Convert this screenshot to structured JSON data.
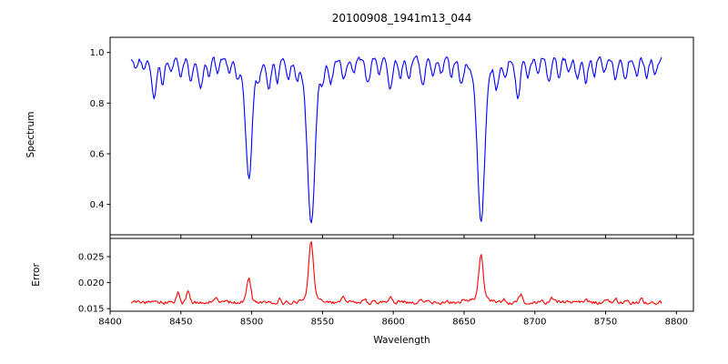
{
  "title": "20100908_1941m13_044",
  "chart_data": {
    "type": "line",
    "title": "20100908_1941m13_044",
    "xlabel": "Wavelength",
    "xlim": [
      8400,
      8812
    ],
    "xticks": [
      8400,
      8450,
      8500,
      8550,
      8600,
      8650,
      8700,
      8750,
      8800
    ],
    "x_data_range": [
      8415,
      8790
    ],
    "sample_step": 0.8,
    "noise_seed": 20100908,
    "grid": false,
    "legend": "none",
    "panels": [
      {
        "name": "spectrum",
        "ylabel": "Spectrum",
        "color": "#0000ff",
        "ylim": [
          0.28,
          1.06
        ],
        "yticks": [
          0.4,
          0.6,
          0.8,
          1.0
        ],
        "ytick_labels": [
          "0.4",
          "0.6",
          "0.8",
          "1.0"
        ],
        "continuum": 0.975,
        "noise_amp": 0.009,
        "main_absorption_lines_wavelengths": [
          8498,
          8542,
          8662
        ],
        "main_absorption_lines_min_flux": [
          0.5,
          0.33,
          0.34
        ],
        "absorption_lines": [
          [
            8418,
            0.04,
            1.2
          ],
          [
            8424,
            0.05,
            1.3
          ],
          [
            8431,
            0.16,
            1.6
          ],
          [
            8437,
            0.1,
            1.4
          ],
          [
            8443,
            0.06,
            1.2
          ],
          [
            8450,
            0.07,
            1.3
          ],
          [
            8457,
            0.09,
            1.4
          ],
          [
            8464,
            0.12,
            1.5
          ],
          [
            8470,
            0.07,
            1.2
          ],
          [
            8476,
            0.06,
            1.2
          ],
          [
            8484,
            0.05,
            1.2
          ],
          [
            8490,
            0.06,
            1.2
          ],
          [
            8498,
            0.44,
            2.2
          ],
          [
            8505,
            0.07,
            1.3
          ],
          [
            8512,
            0.11,
            1.5
          ],
          [
            8518,
            0.09,
            1.3
          ],
          [
            8526,
            0.07,
            1.3
          ],
          [
            8532,
            0.06,
            1.2
          ],
          [
            8542,
            0.6,
            2.6
          ],
          [
            8550,
            0.06,
            1.2
          ],
          [
            8556,
            0.08,
            1.3
          ],
          [
            8565,
            0.09,
            1.4
          ],
          [
            8572,
            0.06,
            1.2
          ],
          [
            8582,
            0.1,
            1.5
          ],
          [
            8590,
            0.07,
            1.2
          ],
          [
            8598,
            0.12,
            1.5
          ],
          [
            8605,
            0.07,
            1.2
          ],
          [
            8611,
            0.08,
            1.3
          ],
          [
            8621,
            0.11,
            1.5
          ],
          [
            8628,
            0.07,
            1.2
          ],
          [
            8634,
            0.06,
            1.2
          ],
          [
            8641,
            0.07,
            1.2
          ],
          [
            8648,
            0.09,
            1.4
          ],
          [
            8662,
            0.6,
            2.5
          ],
          [
            8673,
            0.1,
            1.4
          ],
          [
            8679,
            0.08,
            1.3
          ],
          [
            8688,
            0.16,
            1.6
          ],
          [
            8695,
            0.07,
            1.2
          ],
          [
            8702,
            0.06,
            1.2
          ],
          [
            8710,
            0.09,
            1.4
          ],
          [
            8717,
            0.07,
            1.2
          ],
          [
            8724,
            0.06,
            1.2
          ],
          [
            8730,
            0.08,
            1.3
          ],
          [
            8736,
            0.09,
            1.3
          ],
          [
            8742,
            0.07,
            1.2
          ],
          [
            8749,
            0.06,
            1.2
          ],
          [
            8757,
            0.09,
            1.3
          ],
          [
            8764,
            0.08,
            1.3
          ],
          [
            8772,
            0.07,
            1.2
          ],
          [
            8779,
            0.08,
            1.3
          ],
          [
            8785,
            0.06,
            1.2
          ]
        ],
        "broad_wings": [
          [
            8498,
            0.04,
            7
          ],
          [
            8542,
            0.05,
            9
          ],
          [
            8662,
            0.05,
            8
          ]
        ]
      },
      {
        "name": "error",
        "ylabel": "Error",
        "color": "#ff0000",
        "ylim": [
          0.0145,
          0.0285
        ],
        "yticks": [
          0.015,
          0.02,
          0.025
        ],
        "ytick_labels": [
          "0.015",
          "0.020",
          "0.025"
        ],
        "baseline": 0.0162,
        "noise_amp": 0.00032,
        "main_peaks_wavelengths": [
          8498,
          8542,
          8662
        ],
        "main_peaks_values": [
          0.021,
          0.0275,
          0.0253
        ],
        "emission_peaks": [
          [
            8448,
            0.0018,
            1.2
          ],
          [
            8455,
            0.002,
            1.2
          ],
          [
            8475,
            0.0008,
            1.0
          ],
          [
            8498,
            0.0046,
            1.5
          ],
          [
            8520,
            0.0007,
            1.0
          ],
          [
            8542,
            0.0105,
            1.6
          ],
          [
            8565,
            0.0012,
            1.2
          ],
          [
            8580,
            0.0007,
            1.0
          ],
          [
            8598,
            0.0008,
            1.0
          ],
          [
            8620,
            0.0009,
            1.0
          ],
          [
            8650,
            0.0008,
            1.0
          ],
          [
            8662,
            0.008,
            1.5
          ],
          [
            8678,
            0.0008,
            1.0
          ],
          [
            8690,
            0.0014,
            1.2
          ],
          [
            8712,
            0.0008,
            1.0
          ],
          [
            8736,
            0.0009,
            1.1
          ],
          [
            8757,
            0.0008,
            1.0
          ],
          [
            8775,
            0.0007,
            1.0
          ]
        ],
        "broad_wings": [
          [
            8542,
            0.0012,
            5
          ],
          [
            8662,
            0.0012,
            5
          ]
        ]
      }
    ]
  }
}
